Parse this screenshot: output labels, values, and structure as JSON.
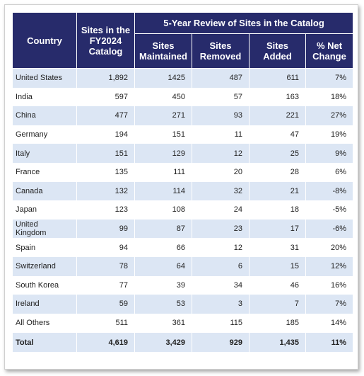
{
  "table": {
    "header": {
      "country": "Country",
      "catalog": "Sites in the FY2024 Catalog",
      "group": "5-Year Review of Sites in the Catalog",
      "columns": [
        "Sites Maintained",
        "Sites Removed",
        "Sites Added",
        "% Net Change"
      ]
    },
    "rows": [
      [
        "United States",
        "1,892",
        "1425",
        "487",
        "611",
        "7%"
      ],
      [
        "India",
        "597",
        "450",
        "57",
        "163",
        "18%"
      ],
      [
        "China",
        "477",
        "271",
        "93",
        "221",
        "27%"
      ],
      [
        "Germany",
        "194",
        "151",
        "11",
        "47",
        "19%"
      ],
      [
        "Italy",
        "151",
        "129",
        "12",
        "25",
        "9%"
      ],
      [
        "France",
        "135",
        "111",
        "20",
        "28",
        "6%"
      ],
      [
        "Canada",
        "132",
        "114",
        "32",
        "21",
        "-8%"
      ],
      [
        "Japan",
        "123",
        "108",
        "24",
        "18",
        "-5%"
      ],
      [
        "United Kingdom",
        "99",
        "87",
        "23",
        "17",
        "-6%"
      ],
      [
        "Spain",
        "94",
        "66",
        "12",
        "31",
        "20%"
      ],
      [
        "Switzerland",
        "78",
        "64",
        "6",
        "15",
        "12%"
      ],
      [
        "South Korea",
        "77",
        "39",
        "34",
        "46",
        "16%"
      ],
      [
        "Ireland",
        "59",
        "53",
        "3",
        "7",
        "7%"
      ],
      [
        "All Others",
        "511",
        "361",
        "115",
        "185",
        "14%"
      ]
    ],
    "total": [
      "Total",
      "4,619",
      "3,429",
      "929",
      "1,435",
      "11%"
    ]
  }
}
